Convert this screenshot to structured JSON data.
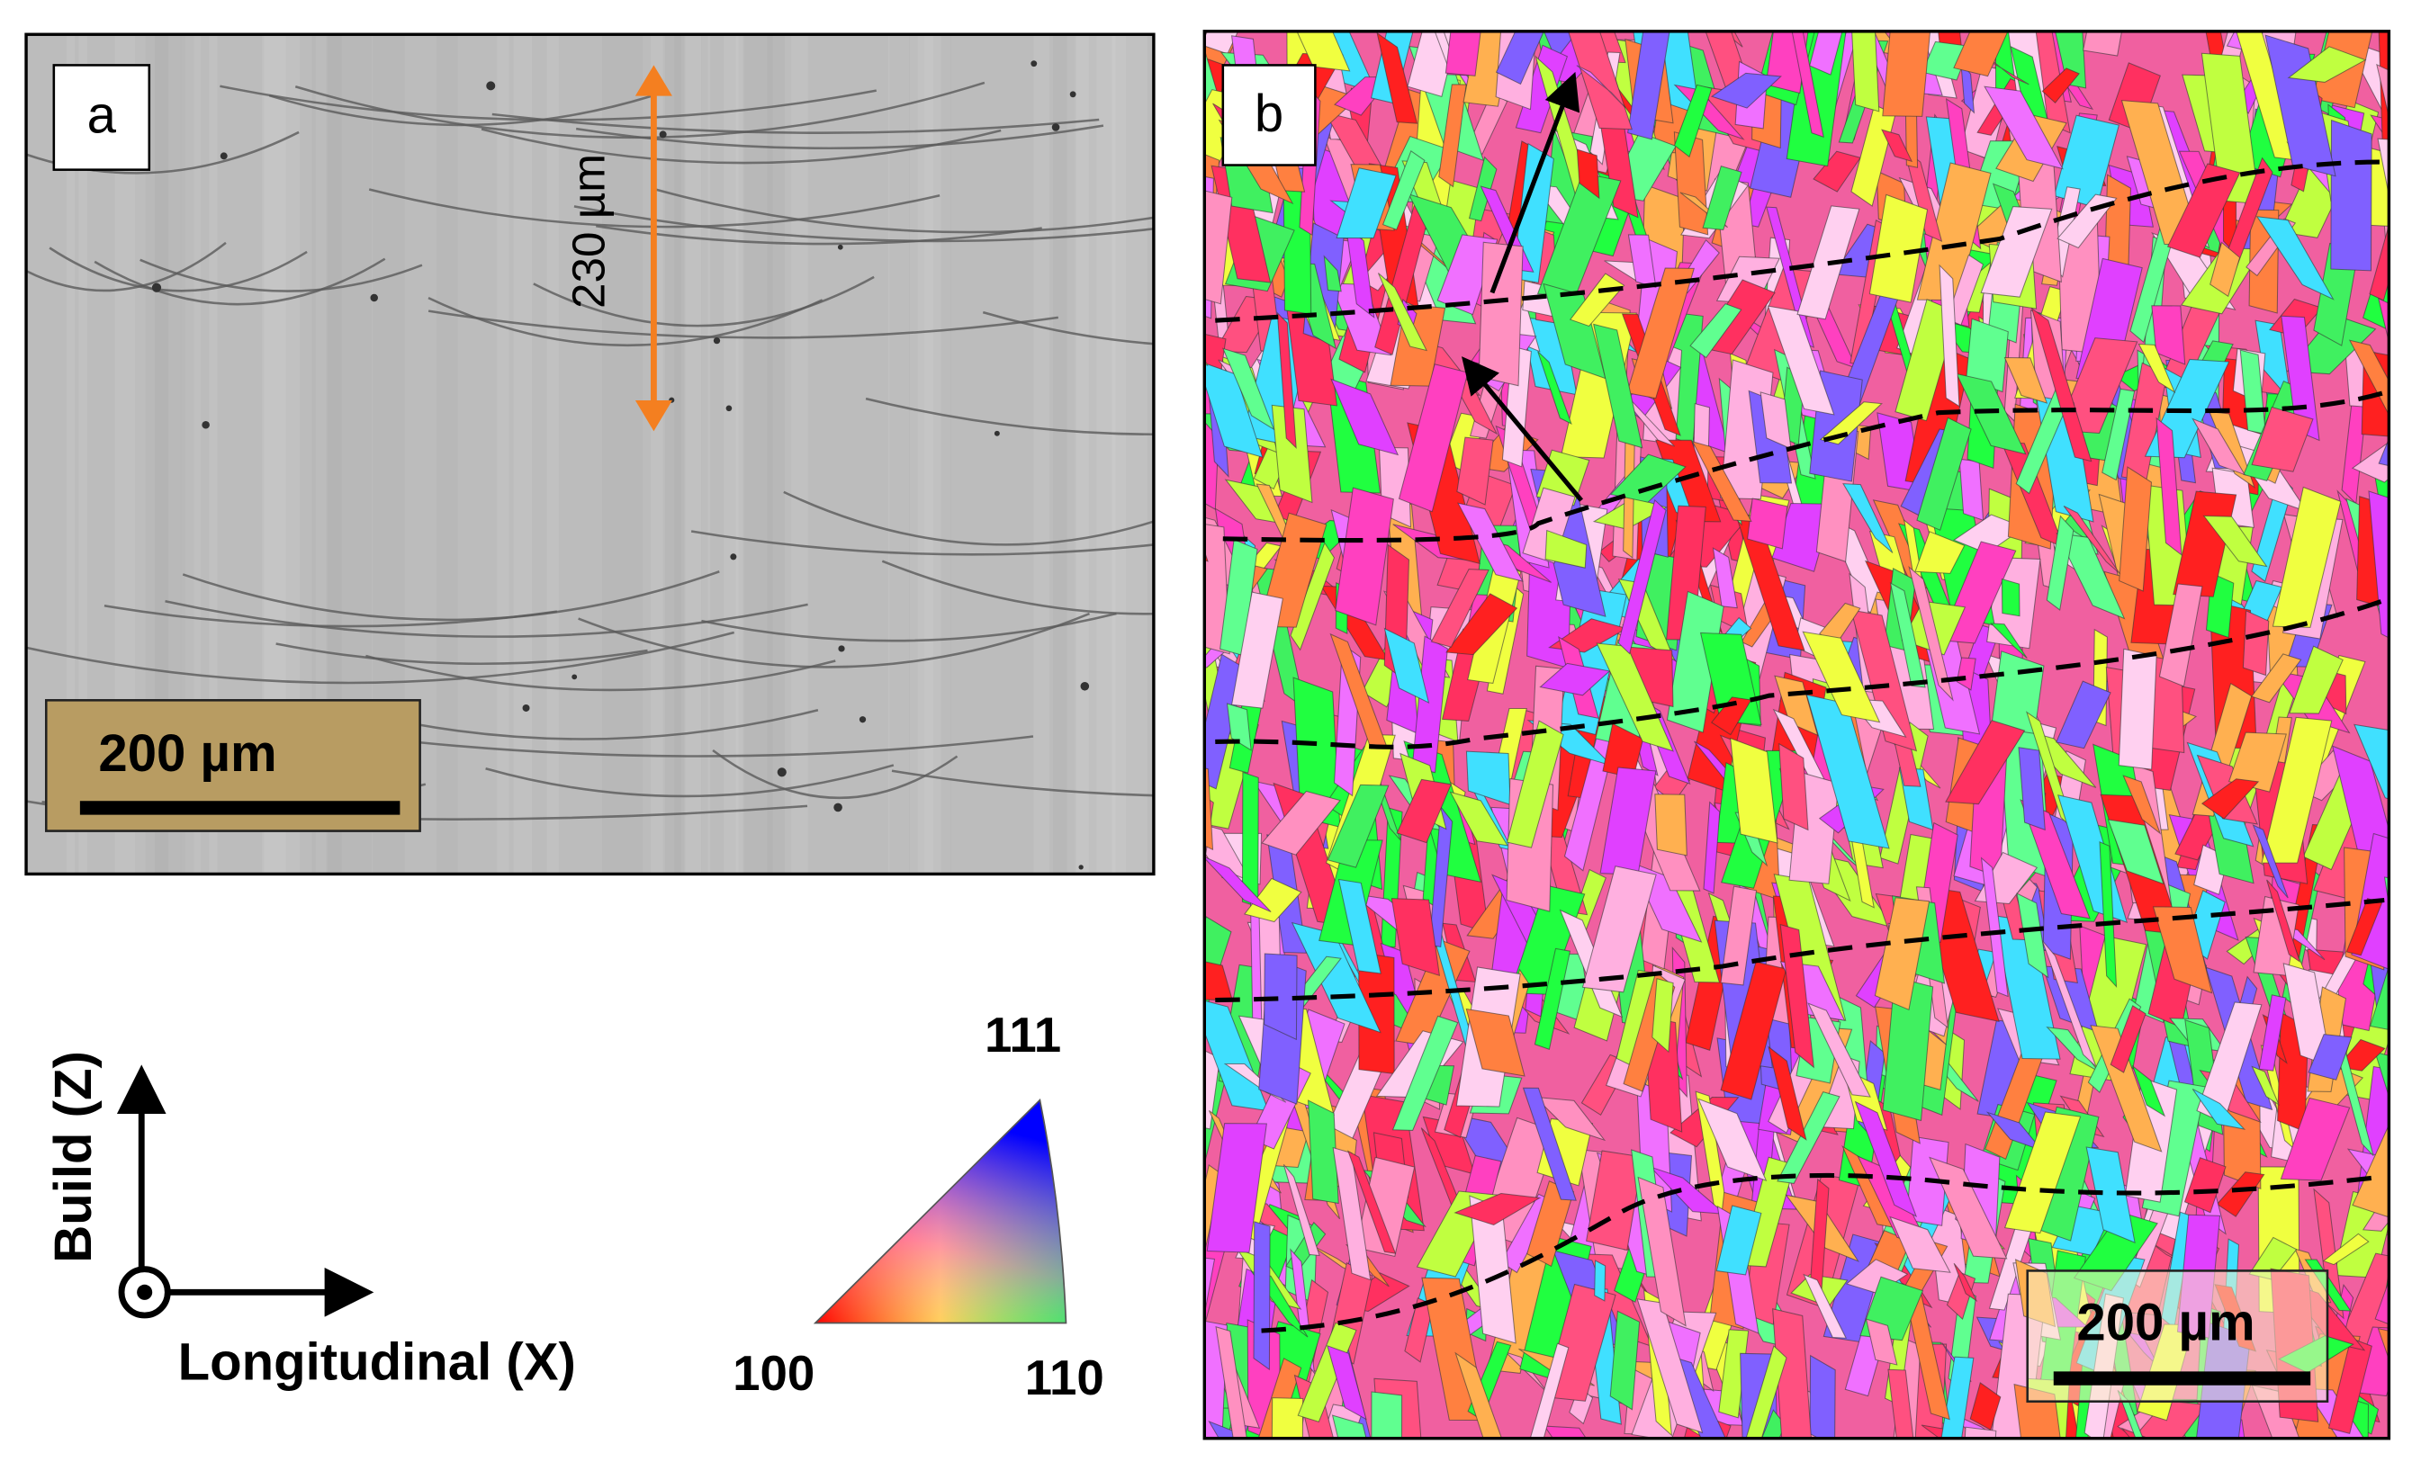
{
  "panel_a": {
    "label": "a",
    "measurement": "230 µm",
    "scale_bar": "200 µm"
  },
  "panel_b": {
    "label": "b",
    "scale_bar": "200 µm"
  },
  "axes": {
    "build": "Build (Z)",
    "longitudinal": "Longitudinal (X)"
  },
  "ipf_key": {
    "top": "111",
    "left": "100",
    "right": "110"
  }
}
